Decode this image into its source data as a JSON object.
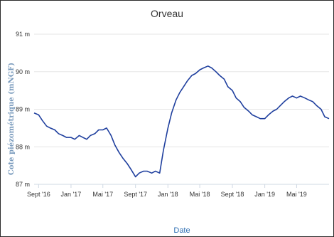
{
  "chart_data": {
    "type": "line",
    "title": "Orveau",
    "xlabel": "Date",
    "ylabel": "Cote piézométrique (mNGF)",
    "ylim": [
      87,
      91
    ],
    "y_ticks": [
      {
        "value": 91,
        "label": "91 m"
      },
      {
        "value": 90,
        "label": "90 m"
      },
      {
        "value": 89,
        "label": "89 m"
      },
      {
        "value": 88,
        "label": "88 m"
      },
      {
        "value": 87,
        "label": "87 m"
      }
    ],
    "x_ticks": [
      {
        "date": "2016-09-01",
        "label": "Sept '16"
      },
      {
        "date": "2017-01-01",
        "label": "Jan '17"
      },
      {
        "date": "2017-05-01",
        "label": "Mai '17"
      },
      {
        "date": "2017-09-01",
        "label": "Sept '17"
      },
      {
        "date": "2018-01-01",
        "label": "Jan '18"
      },
      {
        "date": "2018-05-01",
        "label": "Mai '18"
      },
      {
        "date": "2018-09-01",
        "label": "Sept '18"
      },
      {
        "date": "2019-01-01",
        "label": "Jan '19"
      },
      {
        "date": "2019-05-01",
        "label": "Mai '19"
      }
    ],
    "xlim": [
      "2016-08-15",
      "2019-08-31"
    ],
    "grid": true,
    "series": [
      {
        "color": "#1f3f9e",
        "x": [
          "2016-08-15",
          "2016-09-01",
          "2016-09-15",
          "2016-10-01",
          "2016-10-15",
          "2016-11-01",
          "2016-11-15",
          "2016-12-01",
          "2016-12-15",
          "2017-01-01",
          "2017-01-15",
          "2017-02-01",
          "2017-02-15",
          "2017-03-01",
          "2017-03-15",
          "2017-04-01",
          "2017-04-15",
          "2017-05-01",
          "2017-05-15",
          "2017-06-01",
          "2017-06-15",
          "2017-07-01",
          "2017-07-15",
          "2017-08-01",
          "2017-08-15",
          "2017-09-01",
          "2017-09-15",
          "2017-10-01",
          "2017-10-15",
          "2017-11-01",
          "2017-11-15",
          "2017-12-01",
          "2017-12-15",
          "2018-01-01",
          "2018-01-15",
          "2018-02-01",
          "2018-02-15",
          "2018-03-01",
          "2018-03-15",
          "2018-04-01",
          "2018-04-15",
          "2018-05-01",
          "2018-05-15",
          "2018-06-01",
          "2018-06-15",
          "2018-07-01",
          "2018-07-15",
          "2018-08-01",
          "2018-08-15",
          "2018-09-01",
          "2018-09-15",
          "2018-10-01",
          "2018-10-15",
          "2018-11-01",
          "2018-11-15",
          "2018-12-01",
          "2018-12-15",
          "2019-01-01",
          "2019-01-15",
          "2019-02-01",
          "2019-02-15",
          "2019-03-01",
          "2019-03-15",
          "2019-04-01",
          "2019-04-15",
          "2019-05-01",
          "2019-05-15",
          "2019-06-01",
          "2019-06-15",
          "2019-07-01",
          "2019-07-15",
          "2019-08-01",
          "2019-08-15",
          "2019-08-31"
        ],
        "y": [
          88.9,
          88.85,
          88.7,
          88.55,
          88.5,
          88.45,
          88.35,
          88.3,
          88.25,
          88.25,
          88.2,
          88.3,
          88.25,
          88.2,
          88.3,
          88.35,
          88.45,
          88.45,
          88.5,
          88.3,
          88.05,
          87.85,
          87.7,
          87.55,
          87.4,
          87.2,
          87.3,
          87.35,
          87.35,
          87.3,
          87.35,
          87.3,
          87.9,
          88.5,
          88.9,
          89.25,
          89.45,
          89.6,
          89.75,
          89.9,
          89.95,
          90.05,
          90.1,
          90.15,
          90.1,
          90.0,
          89.9,
          89.8,
          89.6,
          89.5,
          89.3,
          89.2,
          89.05,
          88.95,
          88.85,
          88.8,
          88.75,
          88.75,
          88.85,
          88.95,
          89.0,
          89.1,
          89.2,
          89.3,
          89.35,
          89.3,
          89.35,
          89.3,
          89.25,
          89.2,
          89.1,
          89.0,
          88.8,
          88.75
        ]
      }
    ]
  }
}
